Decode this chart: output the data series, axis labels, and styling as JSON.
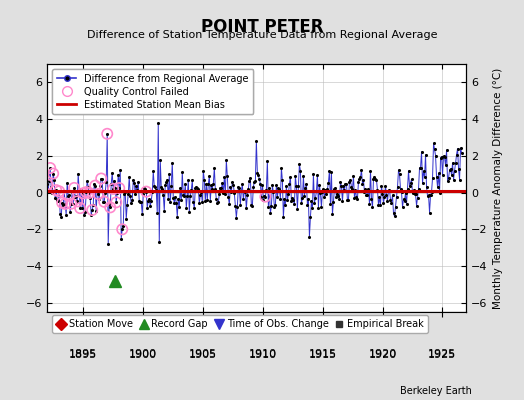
{
  "title": "POINT PETER",
  "subtitle": "Difference of Station Temperature Data from Regional Average",
  "ylabel": "Monthly Temperature Anomaly Difference (°C)",
  "xlim": [
    1892.0,
    1927.0
  ],
  "ylim": [
    -6.5,
    7.0
  ],
  "yticks": [
    -6,
    -4,
    -2,
    0,
    2,
    4,
    6
  ],
  "xticks": [
    1895,
    1900,
    1905,
    1910,
    1915,
    1920,
    1925
  ],
  "bias_line_y": 0.08,
  "bias_line_color": "#cc0000",
  "main_line_color": "#3333cc",
  "dot_color": "#000000",
  "qc_color": "#ff88cc",
  "background_color": "#e0e0e0",
  "plot_bg_color": "#ffffff",
  "grid_color": "#bbbbbb",
  "record_gap_color": "#228B22",
  "obs_change_color": "#3333cc",
  "station_move_color": "#cc0000",
  "empirical_break_color": "#333333",
  "seed": 42,
  "x_start": 1892.0,
  "x_end": 1926.6
}
